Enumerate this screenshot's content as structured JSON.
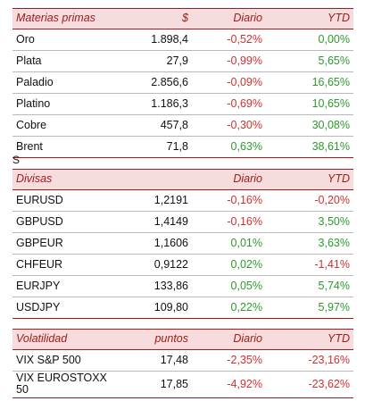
{
  "materias": {
    "headers": [
      "Materias primas",
      "$",
      "Diario",
      "YTD"
    ],
    "rows": [
      {
        "name": "Oro",
        "value": "1.898,4",
        "daily": "-0,52%",
        "ytd": "0,00%"
      },
      {
        "name": "Plata",
        "value": "27,9",
        "daily": "-0,99%",
        "ytd": "5,65%"
      },
      {
        "name": "Paladio",
        "value": "2.856,6",
        "daily": "-0,09%",
        "ytd": "16,65%"
      },
      {
        "name": "Platino",
        "value": "1.186,3",
        "daily": "-0,69%",
        "ytd": "10,65%"
      },
      {
        "name": "Cobre",
        "value": "457,8",
        "daily": "-0,30%",
        "ytd": "30,08%"
      },
      {
        "name": "Brent",
        "value": "71,8",
        "daily": "0,63%",
        "ytd": "38,61%"
      }
    ]
  },
  "separator": "S",
  "divisas": {
    "headers": [
      "Divisas",
      "",
      "Diario",
      "YTD"
    ],
    "rows": [
      {
        "name": "EURUSD",
        "value": "1,2191",
        "daily": "-0,16%",
        "ytd": "-0,20%"
      },
      {
        "name": "GBPUSD",
        "value": "1,4149",
        "daily": "-0,16%",
        "ytd": "3,50%"
      },
      {
        "name": "GBPEUR",
        "value": "1,1606",
        "daily": "0,01%",
        "ytd": "3,63%"
      },
      {
        "name": "CHFEUR",
        "value": "0,9122",
        "daily": "0,02%",
        "ytd": "-1,41%"
      },
      {
        "name": "EURJPY",
        "value": "133,86",
        "daily": "0,05%",
        "ytd": "5,74%"
      },
      {
        "name": "USDJPY",
        "value": "109,80",
        "daily": "0,22%",
        "ytd": "5,97%"
      }
    ]
  },
  "volatilidad": {
    "headers": [
      "Volatilidad",
      "puntos",
      "Diario",
      "YTD"
    ],
    "rows": [
      {
        "name": "VIX S&P 500",
        "value": "17,48",
        "daily": "-2,35%",
        "ytd": "-23,16%"
      },
      {
        "name_line1": "VIX EUROSTOXX",
        "name_line2": "50",
        "value": "17,85",
        "daily": "-4,92%",
        "ytd": "-23,62%"
      }
    ]
  },
  "colors": {
    "header_bg": "#f6dcdc",
    "header_text": "#a11c1c",
    "negative": "#d03030",
    "positive": "#2c9a2c"
  }
}
